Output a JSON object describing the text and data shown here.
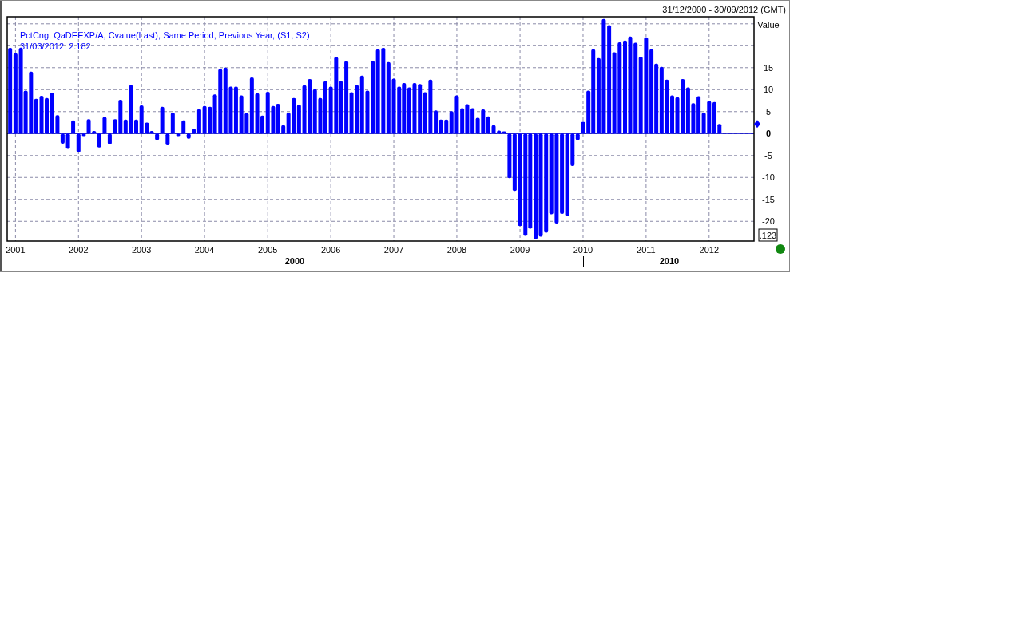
{
  "chart_data": {
    "type": "bar",
    "title": "PctCng, QaDEEXP/A, Cvalue(Last), Same Period, Previous Year, (S1, S2)",
    "subtitle": "31/03/2012, 2.182",
    "ylabel": "Value",
    "x": [
      "2000-12",
      "2001-01",
      "2001-02",
      "2001-03",
      "2001-04",
      "2001-05",
      "2001-06",
      "2001-07",
      "2001-08",
      "2001-09",
      "2001-10",
      "2001-11",
      "2001-12",
      "2002-01",
      "2002-02",
      "2002-03",
      "2002-04",
      "2002-05",
      "2002-06",
      "2002-07",
      "2002-08",
      "2002-09",
      "2002-10",
      "2002-11",
      "2002-12",
      "2003-01",
      "2003-02",
      "2003-03",
      "2003-04",
      "2003-05",
      "2003-06",
      "2003-07",
      "2003-08",
      "2003-09",
      "2003-10",
      "2003-11",
      "2003-12",
      "2004-01",
      "2004-02",
      "2004-03",
      "2004-04",
      "2004-05",
      "2004-06",
      "2004-07",
      "2004-08",
      "2004-09",
      "2004-10",
      "2004-11",
      "2004-12",
      "2005-01",
      "2005-02",
      "2005-03",
      "2005-04",
      "2005-05",
      "2005-06",
      "2005-07",
      "2005-08",
      "2005-09",
      "2005-10",
      "2005-11",
      "2005-12",
      "2006-01",
      "2006-02",
      "2006-03",
      "2006-04",
      "2006-05",
      "2006-06",
      "2006-07",
      "2006-08",
      "2006-09",
      "2006-10",
      "2006-11",
      "2006-12",
      "2007-01",
      "2007-02",
      "2007-03",
      "2007-04",
      "2007-05",
      "2007-06",
      "2007-07",
      "2007-08",
      "2007-09",
      "2007-10",
      "2007-11",
      "2007-12",
      "2008-01",
      "2008-02",
      "2008-03",
      "2008-04",
      "2008-05",
      "2008-06",
      "2008-07",
      "2008-08",
      "2008-09",
      "2008-10",
      "2008-11",
      "2008-12",
      "2009-01",
      "2009-02",
      "2009-03",
      "2009-04",
      "2009-05",
      "2009-06",
      "2009-07",
      "2009-08",
      "2009-09",
      "2009-10",
      "2009-11",
      "2009-12",
      "2010-01",
      "2010-02",
      "2010-03",
      "2010-04",
      "2010-05",
      "2010-06",
      "2010-07",
      "2010-08",
      "2010-09",
      "2010-10",
      "2010-11",
      "2010-12",
      "2011-01",
      "2011-02",
      "2011-03",
      "2011-04",
      "2011-05",
      "2011-06",
      "2011-07",
      "2011-08",
      "2011-09",
      "2011-10",
      "2011-11",
      "2011-12",
      "2012-01",
      "2012-02",
      "2012-03"
    ],
    "values": [
      19.5,
      18.3,
      19.5,
      9.8,
      14.1,
      7.9,
      8.6,
      8.1,
      9.3,
      4.2,
      -2.3,
      -3.5,
      3.0,
      -4.3,
      -0.6,
      3.3,
      0.6,
      -3.2,
      3.8,
      -2.5,
      3.3,
      7.7,
      3.2,
      11.0,
      3.2,
      6.4,
      2.5,
      0.6,
      -1.5,
      6.1,
      -2.7,
      4.8,
      -0.6,
      3.0,
      -1.2,
      1.0,
      5.6,
      6.3,
      6.1,
      8.9,
      14.7,
      15.0,
      10.7,
      10.7,
      8.7,
      4.7,
      12.8,
      9.2,
      4.1,
      9.5,
      6.3,
      6.8,
      1.9,
      4.8,
      8.1,
      6.6,
      11.0,
      12.4,
      10.1,
      8.1,
      11.9,
      10.7,
      17.4,
      11.9,
      16.5,
      9.4,
      11.0,
      13.2,
      9.8,
      16.5,
      19.2,
      19.5,
      16.3,
      12.5,
      10.7,
      11.5,
      10.5,
      11.5,
      11.3,
      9.4,
      12.3,
      5.3,
      3.2,
      3.2,
      5.1,
      8.7,
      5.8,
      6.7,
      5.8,
      3.6,
      5.5,
      3.9,
      1.9,
      0.7,
      0.5,
      -10.2,
      -13.1,
      -21.1,
      -23.3,
      -21.7,
      -24.1,
      -23.5,
      -22.6,
      -18.4,
      -20.5,
      -18.3,
      -18.8,
      -7.4,
      -1.5,
      2.7,
      9.8,
      19.2,
      17.2,
      26.1,
      24.7,
      18.5,
      20.8,
      21.2,
      22.1,
      20.7,
      17.5,
      21.9,
      19.2,
      15.9,
      15.2,
      12.3,
      8.7,
      8.3,
      12.4,
      10.5,
      6.9,
      8.5,
      4.8,
      7.4,
      7.2,
      2.2
    ],
    "color": "#0000ff",
    "xlim": [
      "2000-11-14",
      "2012-09-17"
    ],
    "xticks": [
      {
        "value": "2001-01-01",
        "label": "2001"
      },
      {
        "value": "2002-01-01",
        "label": "2002"
      },
      {
        "value": "2003-01-01",
        "label": "2003"
      },
      {
        "value": "2004-01-01",
        "label": "2004"
      },
      {
        "value": "2005-01-01",
        "label": "2005"
      },
      {
        "value": "2006-01-01",
        "label": "2006"
      },
      {
        "value": "2007-01-01",
        "label": "2007"
      },
      {
        "value": "2008-01-01",
        "label": "2008"
      },
      {
        "value": "2009-01-01",
        "label": "2009"
      },
      {
        "value": "2010-01-01",
        "label": "2010"
      },
      {
        "value": "2011-01-01",
        "label": "2011"
      },
      {
        "value": "2012-01-01",
        "label": "2012"
      }
    ],
    "ylim": [
      -24.5,
      26.6
    ],
    "yticks": [
      -20,
      -15,
      -10,
      -5,
      0,
      5,
      10,
      15,
      {
        "value": 20,
        "label": null
      },
      {
        "value": 25,
        "label": null
      }
    ],
    "grid": true,
    "ref_lines": [
      {
        "axis": "y",
        "value": 0,
        "color": "#0000cc"
      }
    ],
    "annotations": [
      "31/12/2000 - 30/09/2012 (GMT)",
      ".123",
      "2000",
      "2010"
    ]
  }
}
